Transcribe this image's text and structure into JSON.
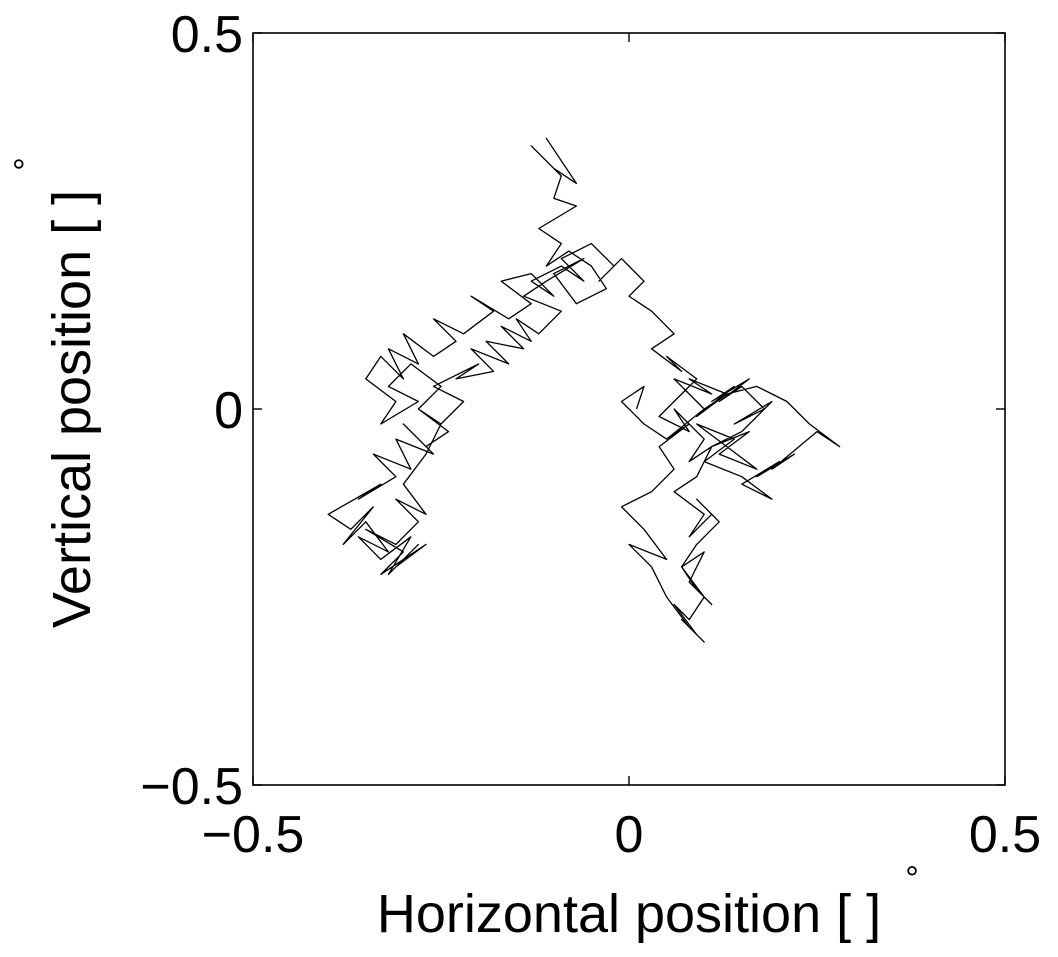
{
  "chart_data": {
    "type": "line",
    "xlabel": "Horizontal position [ ]",
    "ylabel": "Vertical position [ ]",
    "unit_symbol": "°",
    "xlim": [
      -0.5,
      0.5
    ],
    "ylim": [
      -0.5,
      0.5
    ],
    "xticks": [
      -0.5,
      0,
      0.5
    ],
    "yticks": [
      -0.5,
      0,
      0.5
    ],
    "xtick_labels": [
      "−0.5",
      "0",
      "0.5"
    ],
    "ytick_labels": [
      "−0.5",
      "0",
      "0.5"
    ],
    "grid": false,
    "line_color": "#000000",
    "series": [
      {
        "x": [
          -0.09,
          -0.11,
          -0.07,
          -0.1,
          -0.13,
          -0.09,
          -0.1,
          -0.07,
          -0.12,
          -0.09,
          -0.11,
          -0.08,
          -0.05,
          -0.03,
          -0.07,
          -0.1,
          -0.06,
          -0.11,
          -0.14,
          -0.09,
          -0.12,
          -0.15,
          -0.13,
          -0.17,
          -0.14,
          -0.19,
          -0.16,
          -0.21,
          -0.18,
          -0.23,
          -0.2,
          -0.26,
          -0.22,
          -0.25,
          -0.28,
          -0.24,
          -0.27,
          -0.3,
          -0.26,
          -0.31,
          -0.29,
          -0.34,
          -0.31,
          -0.36,
          -0.33,
          -0.4,
          -0.37,
          -0.34,
          -0.38,
          -0.35,
          -0.32,
          -0.36,
          -0.33,
          -0.29,
          -0.32,
          -0.28,
          -0.31,
          -0.27,
          -0.33,
          -0.3,
          -0.35,
          -0.31,
          -0.28,
          -0.31,
          -0.27,
          -0.3,
          -0.27,
          -0.25,
          -0.28,
          -0.25,
          -0.29,
          -0.32,
          -0.28,
          -0.33,
          -0.31,
          -0.35,
          -0.33,
          -0.3,
          -0.32,
          -0.28,
          -0.3,
          -0.26,
          -0.23,
          -0.26,
          -0.22,
          -0.18,
          -0.21,
          -0.16,
          -0.13,
          -0.17,
          -0.13,
          -0.1,
          -0.13,
          -0.09,
          -0.06,
          -0.09,
          -0.05,
          -0.02,
          -0.04,
          -0.01,
          0.02,
          0.0,
          0.03,
          0.06,
          0.03,
          0.07,
          0.05,
          0.09,
          0.07,
          0.04,
          0.08,
          0.06,
          0.1,
          0.08,
          0.11,
          0.09,
          0.06,
          0.1,
          0.08,
          0.11,
          0.09,
          0.12,
          0.09,
          0.07,
          0.1,
          0.08,
          0.11,
          0.09,
          0.07,
          0.1,
          0.08,
          0.06,
          0.09,
          0.07,
          0.1,
          0.08,
          0.05,
          0.03,
          0.0,
          0.05,
          0.02,
          -0.01,
          0.03,
          0.06,
          0.04,
          0.08,
          0.05,
          0.1,
          0.13,
          0.09,
          0.14,
          0.11,
          0.16,
          0.12,
          0.15,
          0.18,
          0.14,
          0.19,
          0.15,
          0.11,
          0.16,
          0.12,
          0.17,
          0.13,
          0.09,
          0.14,
          0.1,
          0.15,
          0.19,
          0.15,
          0.2,
          0.17,
          0.22,
          0.19,
          0.25,
          0.28,
          0.24,
          0.21,
          0.17,
          0.13,
          0.08,
          0.11,
          0.06,
          0.1,
          0.05,
          0.02,
          -0.01,
          0.02,
          0.01
        ],
        "y": [
          0.33,
          0.36,
          0.3,
          0.32,
          0.35,
          0.31,
          0.28,
          0.27,
          0.24,
          0.22,
          0.19,
          0.21,
          0.19,
          0.16,
          0.14,
          0.18,
          0.2,
          0.17,
          0.15,
          0.13,
          0.1,
          0.12,
          0.09,
          0.11,
          0.08,
          0.09,
          0.06,
          0.08,
          0.05,
          0.04,
          0.06,
          0.03,
          0.01,
          -0.02,
          0.0,
          -0.03,
          -0.05,
          -0.02,
          -0.06,
          -0.04,
          -0.08,
          -0.06,
          -0.09,
          -0.12,
          -0.1,
          -0.14,
          -0.16,
          -0.13,
          -0.18,
          -0.15,
          -0.19,
          -0.17,
          -0.2,
          -0.17,
          -0.22,
          -0.18,
          -0.21,
          -0.18,
          -0.22,
          -0.19,
          -0.16,
          -0.18,
          -0.15,
          -0.12,
          -0.14,
          -0.1,
          -0.06,
          -0.02,
          0.0,
          0.03,
          0.06,
          0.03,
          0.01,
          -0.02,
          0.01,
          0.04,
          0.07,
          0.04,
          0.08,
          0.06,
          0.1,
          0.07,
          0.09,
          0.12,
          0.1,
          0.13,
          0.15,
          0.12,
          0.14,
          0.17,
          0.18,
          0.15,
          0.17,
          0.19,
          0.17,
          0.2,
          0.22,
          0.19,
          0.17,
          0.2,
          0.17,
          0.15,
          0.13,
          0.1,
          0.08,
          0.05,
          0.07,
          0.04,
          0.02,
          -0.01,
          -0.03,
          0.0,
          -0.04,
          -0.07,
          -0.05,
          -0.09,
          -0.11,
          -0.14,
          -0.17,
          -0.14,
          -0.12,
          -0.15,
          -0.18,
          -0.21,
          -0.19,
          -0.23,
          -0.26,
          -0.24,
          -0.21,
          -0.25,
          -0.28,
          -0.26,
          -0.3,
          -0.28,
          -0.31,
          -0.29,
          -0.25,
          -0.21,
          -0.18,
          -0.2,
          -0.16,
          -0.13,
          -0.11,
          -0.08,
          -0.05,
          -0.02,
          -0.04,
          0.0,
          0.02,
          -0.01,
          0.03,
          0.01,
          0.04,
          0.01,
          0.03,
          0.0,
          -0.02,
          0.01,
          -0.03,
          -0.05,
          -0.03,
          -0.06,
          -0.08,
          -0.05,
          -0.02,
          -0.04,
          -0.07,
          -0.09,
          -0.12,
          -0.1,
          -0.07,
          -0.09,
          -0.06,
          -0.08,
          -0.03,
          -0.05,
          -0.02,
          0.01,
          0.03,
          0.02,
          0.04,
          0.02,
          0.04,
          0.0,
          -0.04,
          -0.02,
          0.01,
          0.03,
          0.0
        ]
      }
    ]
  }
}
